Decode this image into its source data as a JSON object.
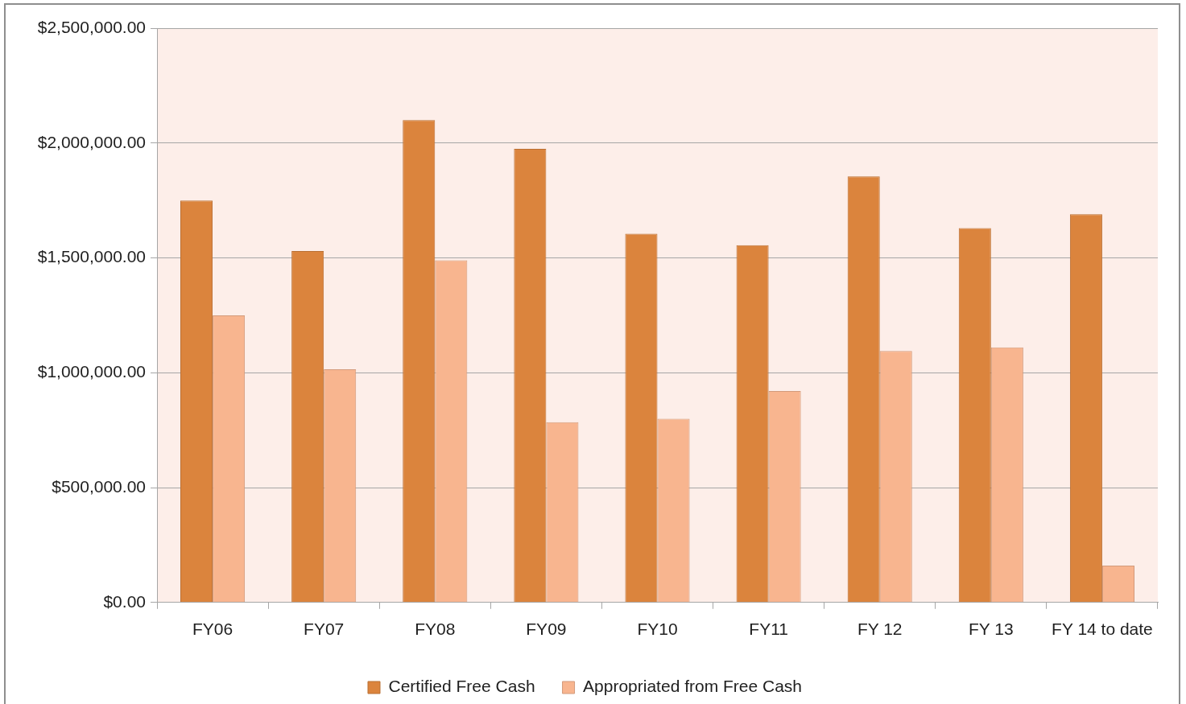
{
  "chart_data": {
    "type": "bar",
    "categories": [
      "FY06",
      "FY07",
      "FY08",
      "FY09",
      "FY10",
      "FY11",
      "FY 12",
      "FY 13",
      "FY 14 to date"
    ],
    "series": [
      {
        "name": "Certified Free Cash",
        "color": "#db843d",
        "values": [
          1750000,
          1530000,
          2100000,
          1975000,
          1605000,
          1555000,
          1855000,
          1630000,
          1690000
        ]
      },
      {
        "name": "Appropriated from Free Cash",
        "color": "#f8b58f",
        "values": [
          1250000,
          1015000,
          1490000,
          785000,
          800000,
          920000,
          1095000,
          1110000,
          160000
        ]
      }
    ],
    "ylim": [
      0,
      2500000
    ],
    "yticks": [
      {
        "value": 0,
        "label": "$0.00"
      },
      {
        "value": 500000,
        "label": "$500,000.00"
      },
      {
        "value": 1000000,
        "label": "$1,000,000.00"
      },
      {
        "value": 1500000,
        "label": "$1,500,000.00"
      },
      {
        "value": 2000000,
        "label": "$2,000,000.00"
      },
      {
        "value": 2500000,
        "label": "$2,500,000.00"
      }
    ],
    "grid": "y",
    "legend": "bottom"
  }
}
